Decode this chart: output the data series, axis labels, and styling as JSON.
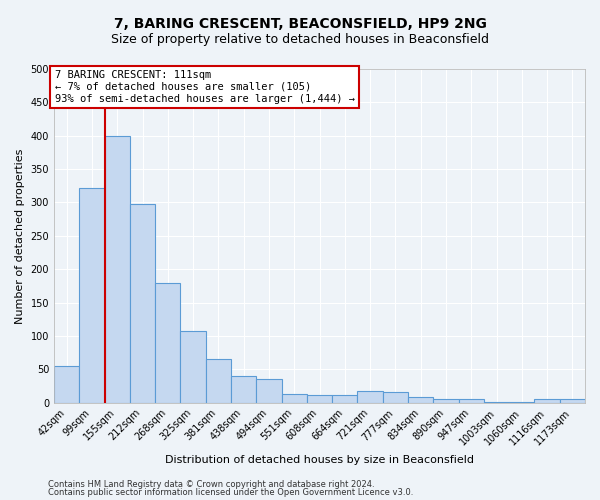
{
  "title_line1": "7, BARING CRESCENT, BEACONSFIELD, HP9 2NG",
  "title_line2": "Size of property relative to detached houses in Beaconsfield",
  "xlabel": "Distribution of detached houses by size in Beaconsfield",
  "ylabel": "Number of detached properties",
  "footer_line1": "Contains HM Land Registry data © Crown copyright and database right 2024.",
  "footer_line2": "Contains public sector information licensed under the Open Government Licence v3.0.",
  "categories": [
    "42sqm",
    "99sqm",
    "155sqm",
    "212sqm",
    "268sqm",
    "325sqm",
    "381sqm",
    "438sqm",
    "494sqm",
    "551sqm",
    "608sqm",
    "664sqm",
    "721sqm",
    "777sqm",
    "834sqm",
    "890sqm",
    "947sqm",
    "1003sqm",
    "1060sqm",
    "1116sqm",
    "1173sqm"
  ],
  "values": [
    55,
    322,
    400,
    297,
    180,
    108,
    65,
    40,
    36,
    13,
    12,
    12,
    17,
    16,
    9,
    5,
    5,
    1,
    1,
    5,
    6
  ],
  "bar_color": "#c5d8f0",
  "bar_edge_color": "#5b9bd5",
  "property_line_x": 1.5,
  "property_line_color": "#cc0000",
  "annotation_text": "7 BARING CRESCENT: 111sqm\n← 7% of detached houses are smaller (105)\n93% of semi-detached houses are larger (1,444) →",
  "annotation_box_color": "#ffffff",
  "annotation_box_edge_color": "#cc0000",
  "ylim": [
    0,
    500
  ],
  "yticks": [
    0,
    50,
    100,
    150,
    200,
    250,
    300,
    350,
    400,
    450,
    500
  ],
  "background_color": "#eef3f8",
  "grid_color": "#ffffff",
  "title_fontsize": 10,
  "subtitle_fontsize": 9,
  "axis_label_fontsize": 8,
  "tick_fontsize": 7,
  "footer_fontsize": 6,
  "annotation_fontsize": 7.5
}
